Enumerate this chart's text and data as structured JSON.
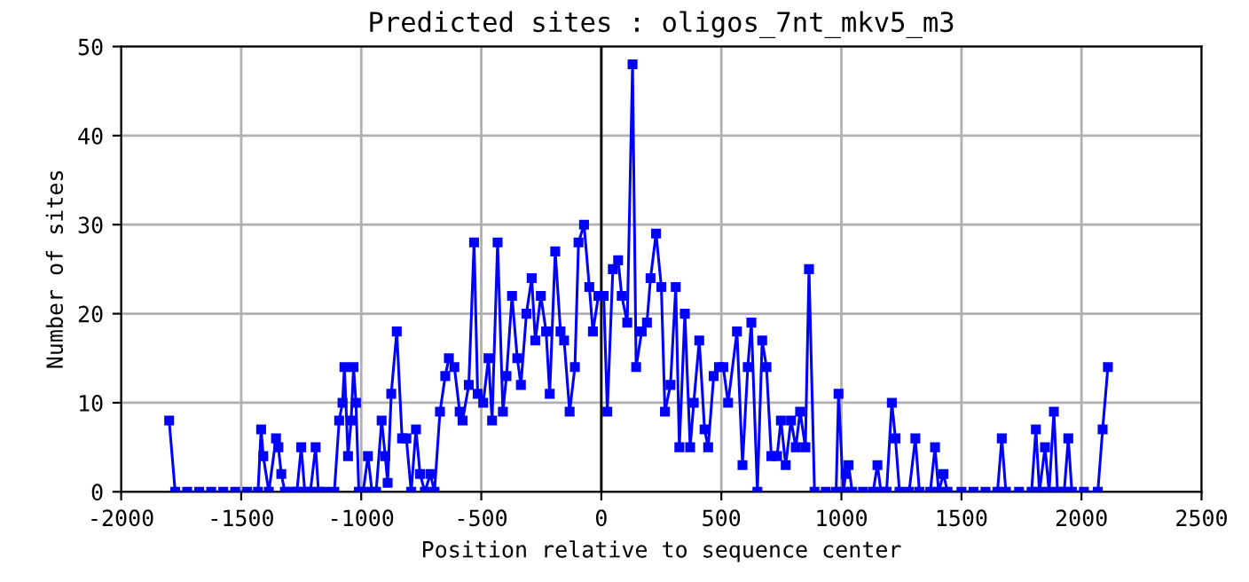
{
  "chart_data": {
    "type": "line",
    "title": "Predicted sites : oligos_7nt_mkv5_m3",
    "xlabel": "Position relative to sequence center",
    "ylabel": "Number of sites",
    "xlim": [
      -2000,
      2500
    ],
    "xticks": [
      -2000,
      -1500,
      -1000,
      -500,
      0,
      500,
      1000,
      1500,
      2000,
      2500
    ],
    "ylim": [
      0,
      50
    ],
    "yticks": [
      0,
      10,
      20,
      30,
      40,
      50
    ],
    "grid": true,
    "marker": "square",
    "line_style": "solid",
    "ref_lines": [
      {
        "axis": "x",
        "value": 0,
        "color": "#000000"
      }
    ],
    "series": [
      {
        "color": "#0000ff",
        "x": [
          -1800,
          -1775,
          -1725,
          -1675,
          -1625,
          -1575,
          -1525,
          -1475,
          -1430,
          -1417,
          -1408,
          -1385,
          -1355,
          -1345,
          -1333,
          -1318,
          -1290,
          -1268,
          -1250,
          -1235,
          -1212,
          -1190,
          -1178,
          -1150,
          -1112,
          -1092,
          -1078,
          -1070,
          -1055,
          -1042,
          -1032,
          -1022,
          -1010,
          -992,
          -972,
          -955,
          -938,
          -915,
          -900,
          -890,
          -875,
          -852,
          -830,
          -812,
          -792,
          -772,
          -755,
          -735,
          -712,
          -695,
          -672,
          -650,
          -635,
          -612,
          -590,
          -578,
          -552,
          -530,
          -515,
          -492,
          -470,
          -455,
          -432,
          -410,
          -395,
          -372,
          -350,
          -335,
          -312,
          -290,
          -275,
          -252,
          -230,
          -215,
          -192,
          -170,
          -155,
          -132,
          -110,
          -95,
          -72,
          -50,
          -35,
          -12,
          10,
          25,
          48,
          70,
          85,
          108,
          130,
          145,
          168,
          190,
          205,
          228,
          250,
          265,
          288,
          310,
          325,
          348,
          370,
          385,
          408,
          430,
          445,
          468,
          490,
          508,
          528,
          565,
          588,
          610,
          625,
          650,
          670,
          688,
          708,
          732,
          748,
          768,
          790,
          810,
          828,
          850,
          865,
          888,
          935,
          978,
          988,
          1008,
          1018,
          1030,
          1045,
          1090,
          1132,
          1150,
          1165,
          1188,
          1210,
          1225,
          1242,
          1282,
          1308,
          1325,
          1370,
          1390,
          1405,
          1425,
          1442,
          1500,
          1550,
          1600,
          1650,
          1668,
          1685,
          1740,
          1792,
          1810,
          1825,
          1848,
          1865,
          1885,
          1900,
          1928,
          1945,
          1960,
          2010,
          2068,
          2088,
          2110
        ],
        "values": [
          8,
          0,
          0,
          0,
          0,
          0,
          0,
          0,
          0,
          7,
          4,
          0,
          6,
          5,
          2,
          0,
          0,
          0,
          5,
          0,
          0,
          5,
          0,
          0,
          0,
          8,
          10,
          14,
          4,
          8,
          14,
          10,
          0,
          0,
          4,
          0,
          0,
          8,
          4,
          1,
          11,
          18,
          6,
          6,
          0,
          7,
          2,
          0,
          2,
          0,
          9,
          13,
          15,
          14,
          9,
          8,
          12,
          28,
          11,
          10,
          15,
          8,
          28,
          9,
          13,
          22,
          15,
          12,
          20,
          24,
          17,
          22,
          18,
          11,
          27,
          18,
          17,
          9,
          14,
          28,
          30,
          23,
          18,
          22,
          22,
          9,
          25,
          26,
          22,
          19,
          48,
          14,
          18,
          19,
          24,
          29,
          23,
          9,
          12,
          23,
          5,
          20,
          5,
          10,
          17,
          7,
          5,
          13,
          14,
          14,
          10,
          18,
          3,
          14,
          19,
          0,
          17,
          14,
          4,
          4,
          8,
          3,
          8,
          5,
          9,
          5,
          25,
          0,
          0,
          0,
          11,
          0,
          2,
          3,
          0,
          0,
          0,
          3,
          0,
          0,
          10,
          6,
          0,
          0,
          6,
          0,
          0,
          5,
          0,
          2,
          0,
          0,
          0,
          0,
          0,
          6,
          0,
          0,
          0,
          7,
          0,
          5,
          0,
          9,
          0,
          0,
          6,
          0,
          0,
          0,
          7,
          14
        ]
      }
    ]
  }
}
